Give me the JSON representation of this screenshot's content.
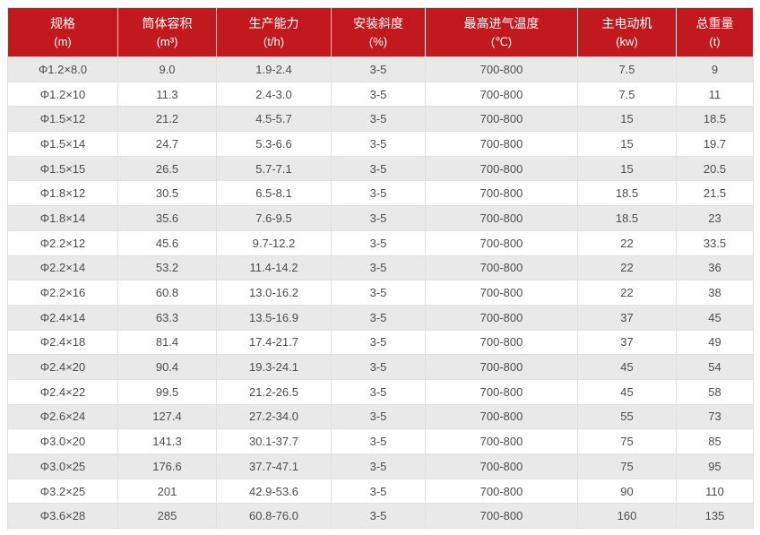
{
  "chart_data": {
    "type": "table",
    "columns": [
      {
        "title": "规格",
        "unit": "(m)"
      },
      {
        "title": "筒体容积",
        "unit": "(m³)"
      },
      {
        "title": "生产能力",
        "unit": "(t/h)"
      },
      {
        "title": "安装斜度",
        "unit": "(%)"
      },
      {
        "title": "最高进气温度",
        "unit": "(℃)"
      },
      {
        "title": "主电动机",
        "unit": "(kw)"
      },
      {
        "title": "总重量",
        "unit": "(t)"
      }
    ],
    "rows": [
      [
        "Φ1.2×8.0",
        "9.0",
        "1.9-2.4",
        "3-5",
        "700-800",
        "7.5",
        "9"
      ],
      [
        "Φ1.2×10",
        "11.3",
        "2.4-3.0",
        "3-5",
        "700-800",
        "7.5",
        "11"
      ],
      [
        "Φ1.5×12",
        "21.2",
        "4.5-5.7",
        "3-5",
        "700-800",
        "15",
        "18.5"
      ],
      [
        "Φ1.5×14",
        "24.7",
        "5.3-6.6",
        "3-5",
        "700-800",
        "15",
        "19.7"
      ],
      [
        "Φ1.5×15",
        "26.5",
        "5.7-7.1",
        "3-5",
        "700-800",
        "15",
        "20.5"
      ],
      [
        "Φ1.8×12",
        "30.5",
        "6.5-8.1",
        "3-5",
        "700-800",
        "18.5",
        "21.5"
      ],
      [
        "Φ1.8×14",
        "35.6",
        "7.6-9.5",
        "3-5",
        "700-800",
        "18.5",
        "23"
      ],
      [
        "Φ2.2×12",
        "45.6",
        "9.7-12.2",
        "3-5",
        "700-800",
        "22",
        "33.5"
      ],
      [
        "Φ2.2×14",
        "53.2",
        "11.4-14.2",
        "3-5",
        "700-800",
        "22",
        "36"
      ],
      [
        "Φ2.2×16",
        "60.8",
        "13.0-16.2",
        "3-5",
        "700-800",
        "22",
        "38"
      ],
      [
        "Φ2.4×14",
        "63.3",
        "13.5-16.9",
        "3-5",
        "700-800",
        "37",
        "45"
      ],
      [
        "Φ2.4×18",
        "81.4",
        "17.4-21.7",
        "3-5",
        "700-800",
        "37",
        "49"
      ],
      [
        "Φ2.4×20",
        "90.4",
        "19.3-24.1",
        "3-5",
        "700-800",
        "45",
        "54"
      ],
      [
        "Φ2.4×22",
        "99.5",
        "21.2-26.5",
        "3-5",
        "700-800",
        "45",
        "58"
      ],
      [
        "Φ2.6×24",
        "127.4",
        "27.2-34.0",
        "3-5",
        "700-800",
        "55",
        "73"
      ],
      [
        "Φ3.0×20",
        "141.3",
        "30.1-37.7",
        "3-5",
        "700-800",
        "75",
        "85"
      ],
      [
        "Φ3.0×25",
        "176.6",
        "37.7-47.1",
        "3-5",
        "700-800",
        "75",
        "95"
      ],
      [
        "Φ3.2×25",
        "201",
        "42.9-53.6",
        "3-5",
        "700-800",
        "90",
        "110"
      ],
      [
        "Φ3.6×28",
        "285",
        "60.8-76.0",
        "3-5",
        "700-800",
        "160",
        "135"
      ]
    ]
  },
  "colors": {
    "header_bg": "#c2191f",
    "header_text": "#ffffff",
    "row_stripe_bg": "#e9e9e9",
    "row_bg": "#ffffff",
    "border": "#e0e0e0",
    "body_text": "#4d4d4d"
  }
}
